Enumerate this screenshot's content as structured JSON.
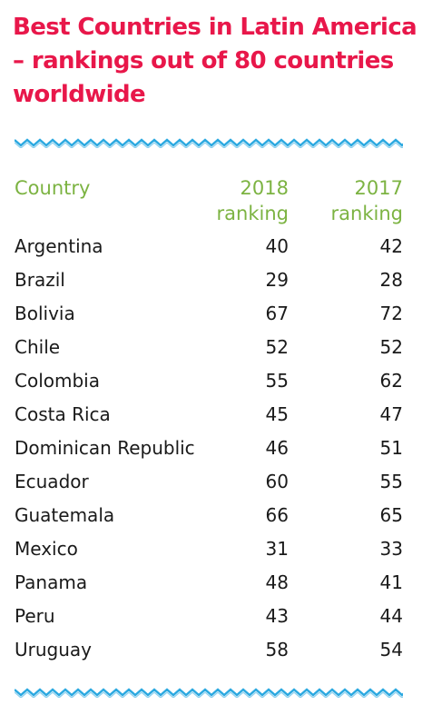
{
  "colors": {
    "title": "#e8174a",
    "header": "#7cb342",
    "zigzag": "#2aa8e0",
    "text": "#1a1a1a"
  },
  "chart_data": {
    "type": "table",
    "title": "Best Countries in Latin America – rankings out of 80 countries worldwide",
    "columns": [
      "Country",
      "2018\nranking",
      "2017\nranking"
    ],
    "rows": [
      {
        "country": "Argentina",
        "r2018": 40,
        "r2017": 42
      },
      {
        "country": "Brazil",
        "r2018": 29,
        "r2017": 28
      },
      {
        "country": "Bolivia",
        "r2018": 67,
        "r2017": 72
      },
      {
        "country": "Chile",
        "r2018": 52,
        "r2017": 52
      },
      {
        "country": "Colombia",
        "r2018": 55,
        "r2017": 62
      },
      {
        "country": "Costa Rica",
        "r2018": 45,
        "r2017": 47
      },
      {
        "country": "Dominican Republic",
        "r2018": 46,
        "r2017": 51
      },
      {
        "country": "Ecuador",
        "r2018": 60,
        "r2017": 55
      },
      {
        "country": "Guatemala",
        "r2018": 66,
        "r2017": 65
      },
      {
        "country": "Mexico",
        "r2018": 31,
        "r2017": 33
      },
      {
        "country": "Panama",
        "r2018": 48,
        "r2017": 41
      },
      {
        "country": "Peru",
        "r2018": 43,
        "r2017": 44
      },
      {
        "country": "Uruguay",
        "r2018": 58,
        "r2017": 54
      }
    ]
  }
}
